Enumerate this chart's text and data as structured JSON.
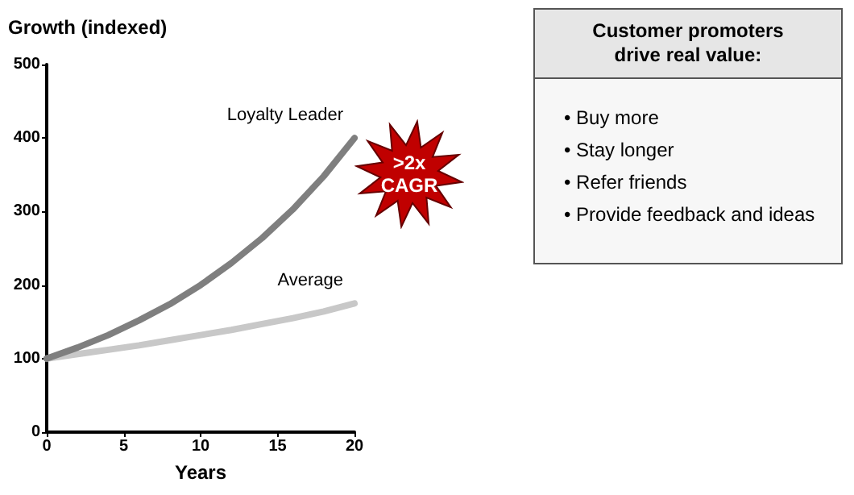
{
  "chart_data": {
    "type": "line",
    "title": "Growth (indexed)",
    "xlabel": "Years",
    "x": [
      0,
      2,
      4,
      6,
      8,
      10,
      12,
      14,
      16,
      18,
      20
    ],
    "series": [
      {
        "name": "Loyalty Leader",
        "color": "#7f7f7f",
        "values": [
          100,
          115,
          132,
          152,
          174,
          200,
          230,
          264,
          303,
          348,
          400
        ]
      },
      {
        "name": "Average",
        "color": "#c8c8c8",
        "values": [
          100,
          106,
          112,
          118,
          125,
          132,
          139,
          147,
          155,
          164,
          175
        ]
      }
    ],
    "xlim": [
      0,
      20
    ],
    "xticks": [
      0,
      5,
      10,
      15,
      20
    ],
    "ylim": [
      0,
      500
    ],
    "yticks": [
      0,
      100,
      200,
      300,
      400,
      500
    ],
    "grid": false,
    "legend": false,
    "marker": "none",
    "line_style": "solid",
    "annotations": [
      ">2x CAGR",
      "Customer promoters drive real value:",
      "• Buy more",
      "• Stay longer",
      "• Refer friends",
      "• Provide feedback and ideas"
    ]
  }
}
